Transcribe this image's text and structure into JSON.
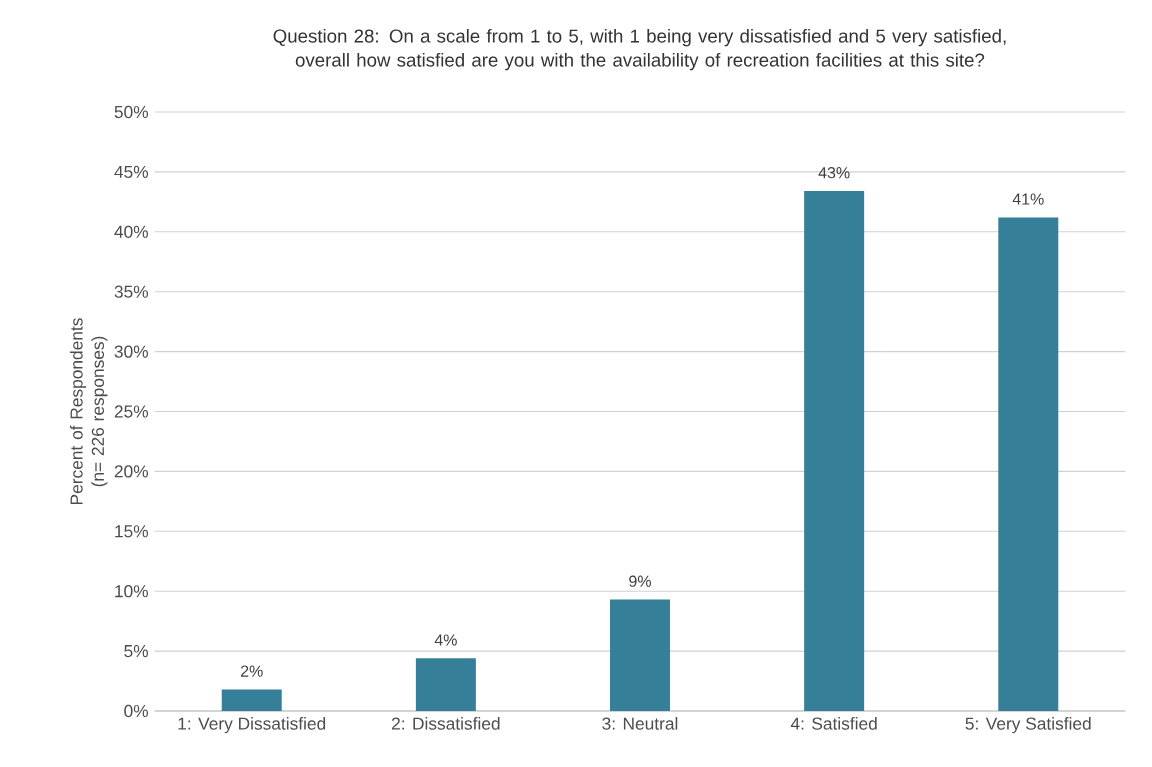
{
  "chart_data": {
    "type": "bar",
    "title": "Question 28: On a scale from 1 to 5, with 1 being very dissatisfied and 5 very satisfied, overall how satisfied are you with the availability of recreation facilities at this site?",
    "ylabel": "Percent of Respondents (n= 226 responses)",
    "categories": [
      "1: Very Dissatisfied",
      "2: Dissatisfied",
      "3: Neutral",
      "4: Satisfied",
      "5: Very Satisfied"
    ],
    "values": [
      1.8,
      4.4,
      9.3,
      43.4,
      41.2
    ],
    "value_labels": [
      "2%",
      "4%",
      "9%",
      "43%",
      "41%"
    ],
    "color": "#367f99",
    "ylim": [
      0,
      50
    ],
    "yticks": [
      {
        "value": 0,
        "label": "0%"
      },
      {
        "value": 5,
        "label": "5%"
      },
      {
        "value": 10,
        "label": "10%"
      },
      {
        "value": 15,
        "label": "15%"
      },
      {
        "value": 20,
        "label": "20%"
      },
      {
        "value": 25,
        "label": "25%"
      },
      {
        "value": 30,
        "label": "30%"
      },
      {
        "value": 35,
        "label": "35%"
      },
      {
        "value": 40,
        "label": "40%"
      },
      {
        "value": 45,
        "label": "45%"
      },
      {
        "value": 50,
        "label": "50%"
      }
    ],
    "grid": "y"
  }
}
